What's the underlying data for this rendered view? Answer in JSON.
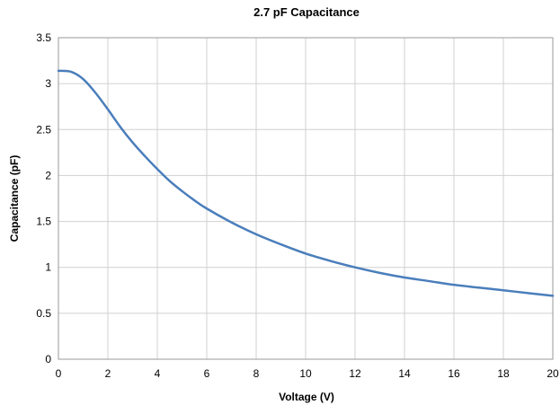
{
  "chart_data": {
    "type": "line",
    "title": "2.7 pF Capacitance",
    "xlabel": "Voltage (V)",
    "ylabel": "Capacitance (pF)",
    "xlim": [
      0,
      20
    ],
    "ylim": [
      0,
      3.5
    ],
    "x_ticks": [
      "0",
      "2",
      "4",
      "6",
      "8",
      "10",
      "12",
      "14",
      "16",
      "18",
      "20"
    ],
    "y_ticks": [
      "0",
      "0.5",
      "1",
      "1.5",
      "2",
      "2.5",
      "3",
      "3.5"
    ],
    "grid": true,
    "legend": "none",
    "series": [
      {
        "color": "#4a7ebb",
        "x": [
          0,
          0.5,
          1,
          1.5,
          2,
          2.5,
          3,
          3.5,
          4,
          4.5,
          5,
          5.5,
          6,
          7,
          8,
          9,
          10,
          11,
          12,
          13,
          14,
          15,
          16,
          17,
          18,
          19,
          20
        ],
        "y": [
          3.14,
          3.13,
          3.05,
          2.9,
          2.72,
          2.53,
          2.36,
          2.21,
          2.07,
          1.94,
          1.83,
          1.73,
          1.64,
          1.49,
          1.36,
          1.25,
          1.15,
          1.07,
          1.0,
          0.94,
          0.89,
          0.85,
          0.81,
          0.78,
          0.75,
          0.72,
          0.69
        ]
      }
    ]
  }
}
